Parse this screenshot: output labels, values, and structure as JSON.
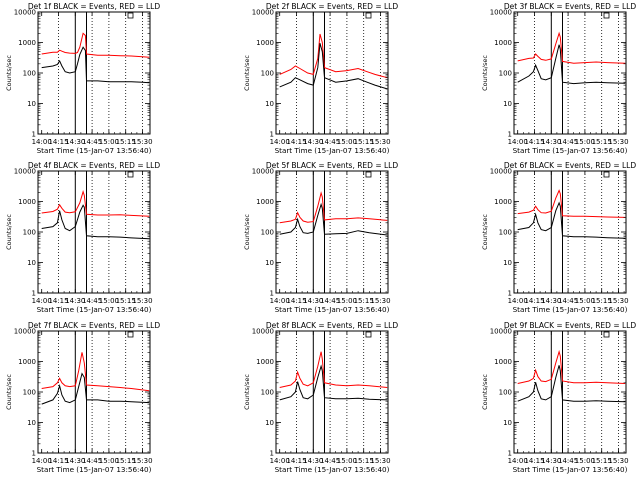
{
  "chart_data": {
    "type": "line",
    "y_scale": "log",
    "ylim": [
      1,
      10000
    ],
    "ylabel": "Counts/sec",
    "xlabel": "Start Time (15-Jan-07 13:56:40)",
    "x_ticks": [
      "14:00",
      "14:15",
      "14:30",
      "14:45",
      "15:00",
      "15:15",
      "15:30"
    ],
    "y_ticks": [
      "1",
      "10",
      "100",
      "1000",
      "10000"
    ],
    "xlim_minutes": [
      -3.3,
      96.7
    ],
    "grid_vertical_dotted": [
      "14:15",
      "14:45",
      "15:00",
      "15:15",
      "15:30"
    ],
    "marker_lines": [
      "14:30",
      "14:40"
    ],
    "legend_note": "BLACK = Events, RED = LLD",
    "panels": [
      {
        "title": "Det 1f BLACK = Events, RED = LLD",
        "red": [
          [
            0,
            420
          ],
          [
            10,
            480
          ],
          [
            14,
            480
          ],
          [
            16,
            560
          ],
          [
            18,
            520
          ],
          [
            21,
            470
          ],
          [
            25,
            450
          ],
          [
            30,
            440
          ],
          [
            32,
            470
          ],
          [
            34,
            700
          ],
          [
            37,
            2000
          ],
          [
            39,
            1700
          ],
          [
            40,
            420
          ],
          [
            50,
            380
          ],
          [
            60,
            380
          ],
          [
            70,
            370
          ],
          [
            80,
            360
          ],
          [
            90,
            340
          ],
          [
            96,
            330
          ]
        ],
        "black": [
          [
            0,
            150
          ],
          [
            10,
            170
          ],
          [
            14,
            190
          ],
          [
            16,
            250
          ],
          [
            18,
            170
          ],
          [
            21,
            110
          ],
          [
            25,
            100
          ],
          [
            30,
            110
          ],
          [
            32,
            200
          ],
          [
            34,
            400
          ],
          [
            37,
            700
          ],
          [
            39,
            550
          ],
          [
            40,
            55
          ],
          [
            50,
            55
          ],
          [
            60,
            52
          ],
          [
            70,
            52
          ],
          [
            80,
            52
          ],
          [
            90,
            50
          ],
          [
            96,
            48
          ]
        ]
      },
      {
        "title": "Det 2f BLACK = Events, RED = LLD",
        "red": [
          [
            0,
            90
          ],
          [
            10,
            130
          ],
          [
            14,
            170
          ],
          [
            18,
            140
          ],
          [
            25,
            100
          ],
          [
            30,
            90
          ],
          [
            34,
            300
          ],
          [
            36,
            1900
          ],
          [
            38,
            1000
          ],
          [
            40,
            150
          ],
          [
            50,
            110
          ],
          [
            60,
            120
          ],
          [
            70,
            140
          ],
          [
            78,
            110
          ],
          [
            85,
            90
          ],
          [
            96,
            70
          ]
        ],
        "black": [
          [
            0,
            35
          ],
          [
            10,
            50
          ],
          [
            14,
            70
          ],
          [
            18,
            60
          ],
          [
            25,
            45
          ],
          [
            30,
            40
          ],
          [
            34,
            150
          ],
          [
            36,
            950
          ],
          [
            38,
            500
          ],
          [
            40,
            70
          ],
          [
            50,
            50
          ],
          [
            60,
            55
          ],
          [
            70,
            65
          ],
          [
            78,
            50
          ],
          [
            85,
            40
          ],
          [
            96,
            30
          ]
        ]
      },
      {
        "title": "Det 3f BLACK = Events, RED = LLD",
        "red": [
          [
            0,
            250
          ],
          [
            10,
            300
          ],
          [
            14,
            310
          ],
          [
            16,
            420
          ],
          [
            18,
            350
          ],
          [
            21,
            280
          ],
          [
            25,
            260
          ],
          [
            30,
            290
          ],
          [
            34,
            900
          ],
          [
            37,
            2000
          ],
          [
            38,
            1500
          ],
          [
            40,
            240
          ],
          [
            50,
            210
          ],
          [
            60,
            220
          ],
          [
            70,
            230
          ],
          [
            80,
            220
          ],
          [
            96,
            210
          ]
        ],
        "black": [
          [
            0,
            50
          ],
          [
            10,
            80
          ],
          [
            14,
            110
          ],
          [
            16,
            180
          ],
          [
            18,
            120
          ],
          [
            21,
            65
          ],
          [
            25,
            60
          ],
          [
            30,
            70
          ],
          [
            34,
            300
          ],
          [
            37,
            850
          ],
          [
            38,
            600
          ],
          [
            40,
            50
          ],
          [
            50,
            45
          ],
          [
            60,
            48
          ],
          [
            70,
            50
          ],
          [
            80,
            48
          ],
          [
            96,
            46
          ]
        ]
      },
      {
        "title": "Det 4f BLACK = Events, RED = LLD",
        "red": [
          [
            0,
            420
          ],
          [
            10,
            470
          ],
          [
            14,
            560
          ],
          [
            16,
            780
          ],
          [
            18,
            600
          ],
          [
            21,
            450
          ],
          [
            25,
            430
          ],
          [
            30,
            460
          ],
          [
            34,
            900
          ],
          [
            37,
            2100
          ],
          [
            38,
            1600
          ],
          [
            40,
            380
          ],
          [
            50,
            360
          ],
          [
            60,
            360
          ],
          [
            70,
            370
          ],
          [
            80,
            350
          ],
          [
            96,
            330
          ]
        ],
        "black": [
          [
            0,
            130
          ],
          [
            10,
            150
          ],
          [
            14,
            200
          ],
          [
            16,
            500
          ],
          [
            18,
            250
          ],
          [
            21,
            130
          ],
          [
            25,
            110
          ],
          [
            30,
            150
          ],
          [
            34,
            450
          ],
          [
            37,
            750
          ],
          [
            38,
            650
          ],
          [
            40,
            75
          ],
          [
            50,
            70
          ],
          [
            60,
            70
          ],
          [
            70,
            68
          ],
          [
            80,
            64
          ],
          [
            96,
            60
          ]
        ]
      },
      {
        "title": "Det 5f BLACK = Events, RED = LLD",
        "red": [
          [
            0,
            200
          ],
          [
            10,
            230
          ],
          [
            14,
            260
          ],
          [
            16,
            430
          ],
          [
            18,
            300
          ],
          [
            21,
            230
          ],
          [
            25,
            210
          ],
          [
            30,
            220
          ],
          [
            34,
            700
          ],
          [
            37,
            1900
          ],
          [
            38,
            1400
          ],
          [
            40,
            250
          ],
          [
            50,
            270
          ],
          [
            60,
            270
          ],
          [
            70,
            290
          ],
          [
            80,
            270
          ],
          [
            96,
            240
          ]
        ],
        "black": [
          [
            0,
            85
          ],
          [
            10,
            100
          ],
          [
            14,
            140
          ],
          [
            16,
            260
          ],
          [
            18,
            150
          ],
          [
            21,
            95
          ],
          [
            25,
            90
          ],
          [
            30,
            100
          ],
          [
            34,
            350
          ],
          [
            37,
            800
          ],
          [
            38,
            600
          ],
          [
            40,
            85
          ],
          [
            50,
            88
          ],
          [
            60,
            90
          ],
          [
            70,
            110
          ],
          [
            80,
            95
          ],
          [
            96,
            80
          ]
        ]
      },
      {
        "title": "Det 6f BLACK = Events, RED = LLD",
        "red": [
          [
            0,
            400
          ],
          [
            10,
            450
          ],
          [
            14,
            520
          ],
          [
            16,
            700
          ],
          [
            18,
            540
          ],
          [
            21,
            430
          ],
          [
            25,
            420
          ],
          [
            30,
            480
          ],
          [
            34,
            1300
          ],
          [
            37,
            2300
          ],
          [
            38,
            1800
          ],
          [
            40,
            340
          ],
          [
            50,
            330
          ],
          [
            60,
            330
          ],
          [
            70,
            320
          ],
          [
            80,
            310
          ],
          [
            96,
            300
          ]
        ],
        "black": [
          [
            0,
            120
          ],
          [
            10,
            140
          ],
          [
            14,
            200
          ],
          [
            16,
            380
          ],
          [
            18,
            200
          ],
          [
            21,
            120
          ],
          [
            25,
            110
          ],
          [
            30,
            140
          ],
          [
            34,
            500
          ],
          [
            37,
            900
          ],
          [
            38,
            700
          ],
          [
            40,
            75
          ],
          [
            50,
            70
          ],
          [
            60,
            70
          ],
          [
            70,
            68
          ],
          [
            80,
            65
          ],
          [
            96,
            62
          ]
        ]
      },
      {
        "title": "Det 7f BLACK = Events, RED = LLD",
        "red": [
          [
            0,
            130
          ],
          [
            10,
            150
          ],
          [
            14,
            200
          ],
          [
            16,
            280
          ],
          [
            18,
            200
          ],
          [
            21,
            160
          ],
          [
            25,
            150
          ],
          [
            30,
            160
          ],
          [
            33,
            500
          ],
          [
            36,
            2000
          ],
          [
            38,
            900
          ],
          [
            40,
            170
          ],
          [
            50,
            160
          ],
          [
            60,
            150
          ],
          [
            70,
            140
          ],
          [
            80,
            130
          ],
          [
            96,
            110
          ]
        ],
        "black": [
          [
            0,
            40
          ],
          [
            10,
            55
          ],
          [
            14,
            90
          ],
          [
            16,
            160
          ],
          [
            18,
            80
          ],
          [
            21,
            50
          ],
          [
            25,
            45
          ],
          [
            30,
            55
          ],
          [
            33,
            150
          ],
          [
            36,
            400
          ],
          [
            38,
            300
          ],
          [
            40,
            55
          ],
          [
            50,
            55
          ],
          [
            60,
            50
          ],
          [
            70,
            50
          ],
          [
            80,
            48
          ],
          [
            96,
            45
          ]
        ]
      },
      {
        "title": "Det 8f BLACK = Events, RED = LLD",
        "red": [
          [
            0,
            140
          ],
          [
            10,
            170
          ],
          [
            14,
            230
          ],
          [
            16,
            450
          ],
          [
            18,
            280
          ],
          [
            21,
            180
          ],
          [
            25,
            160
          ],
          [
            30,
            200
          ],
          [
            34,
            700
          ],
          [
            37,
            2100
          ],
          [
            38,
            1200
          ],
          [
            40,
            200
          ],
          [
            50,
            170
          ],
          [
            60,
            160
          ],
          [
            70,
            170
          ],
          [
            80,
            160
          ],
          [
            96,
            140
          ]
        ],
        "black": [
          [
            0,
            55
          ],
          [
            10,
            70
          ],
          [
            14,
            100
          ],
          [
            16,
            220
          ],
          [
            18,
            120
          ],
          [
            21,
            65
          ],
          [
            25,
            60
          ],
          [
            30,
            80
          ],
          [
            34,
            300
          ],
          [
            37,
            700
          ],
          [
            38,
            500
          ],
          [
            40,
            65
          ],
          [
            50,
            60
          ],
          [
            60,
            60
          ],
          [
            70,
            62
          ],
          [
            80,
            58
          ],
          [
            96,
            55
          ]
        ]
      },
      {
        "title": "Det 9f BLACK = Events, RED = LLD",
        "red": [
          [
            0,
            190
          ],
          [
            10,
            230
          ],
          [
            14,
            280
          ],
          [
            16,
            520
          ],
          [
            18,
            320
          ],
          [
            21,
            230
          ],
          [
            25,
            220
          ],
          [
            30,
            260
          ],
          [
            34,
            900
          ],
          [
            37,
            2100
          ],
          [
            38,
            1500
          ],
          [
            40,
            230
          ],
          [
            50,
            200
          ],
          [
            60,
            200
          ],
          [
            70,
            210
          ],
          [
            80,
            200
          ],
          [
            96,
            190
          ]
        ],
        "black": [
          [
            0,
            50
          ],
          [
            10,
            70
          ],
          [
            14,
            100
          ],
          [
            16,
            210
          ],
          [
            18,
            110
          ],
          [
            21,
            60
          ],
          [
            25,
            55
          ],
          [
            30,
            70
          ],
          [
            34,
            300
          ],
          [
            37,
            750
          ],
          [
            38,
            500
          ],
          [
            40,
            55
          ],
          [
            50,
            50
          ],
          [
            60,
            50
          ],
          [
            70,
            52
          ],
          [
            80,
            50
          ],
          [
            96,
            48
          ]
        ]
      }
    ]
  }
}
